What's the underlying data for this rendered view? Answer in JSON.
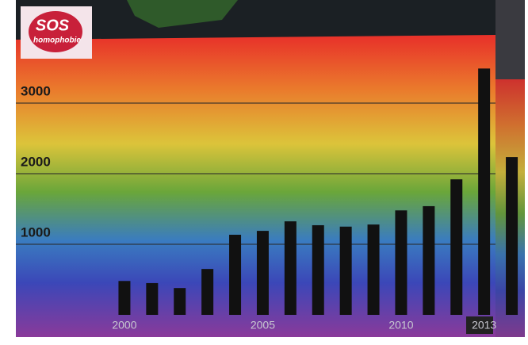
{
  "logo": {
    "line1": "SOS",
    "line2": "homophobie"
  },
  "chart_data": {
    "type": "bar",
    "categories": [
      "2000",
      null,
      null,
      null,
      null,
      "2005",
      null,
      null,
      null,
      null,
      "2010",
      null,
      null,
      "2013",
      null
    ],
    "values": [
      480,
      450,
      380,
      650,
      1135,
      1190,
      1325,
      1270,
      1250,
      1280,
      1480,
      1540,
      1920,
      3490,
      2235
    ],
    "color": "#111111",
    "ylim": [
      0,
      4000
    ],
    "yticks": [
      1000,
      2000,
      3000
    ],
    "grid": true
  }
}
